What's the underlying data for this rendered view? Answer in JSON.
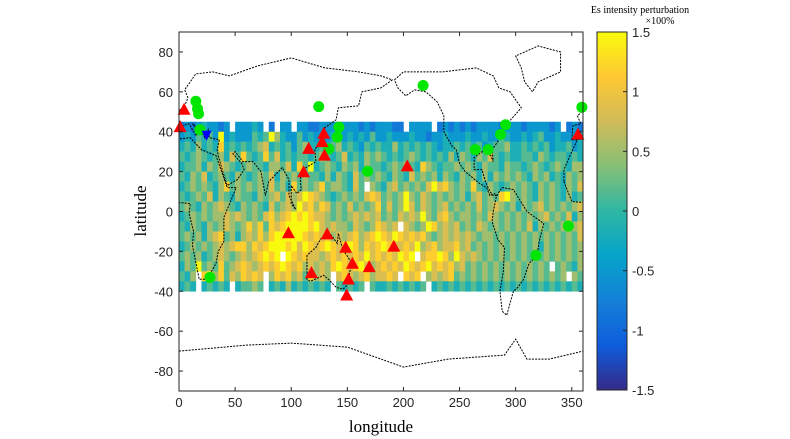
{
  "chart_data": {
    "type": "heatmap",
    "xlabel": "longitude",
    "ylabel": "latitude",
    "xlim": [
      0,
      360
    ],
    "ylim": [
      -90,
      90
    ],
    "xticks": [
      0,
      50,
      100,
      150,
      200,
      250,
      300,
      350
    ],
    "yticks": [
      80,
      60,
      40,
      20,
      0,
      -20,
      -40,
      -60,
      -80
    ],
    "colorbar": {
      "title": "Es intensity perturbation",
      "unit": "×100%",
      "range": [
        -1.5,
        1.5
      ],
      "ticks": [
        "1.5",
        "1",
        "0.5",
        "0",
        "-0.5",
        "-1",
        "-1.5"
      ],
      "colormap": [
        "#352a87",
        "#0f5cdd",
        "#1481d6",
        "#06a4ca",
        "#2eb7a4",
        "#87bf77",
        "#d1bb59",
        "#fec832",
        "#f9fb0e"
      ]
    },
    "grid": {
      "lon_start": 0,
      "lon_step": 5,
      "lat_top": 45,
      "lat_step": 5,
      "encoding": "digit d -> value -1.5 + d/3 ; '.' = no data",
      "rows": [
        "232343323.33343.2.33.332233323332323 3322.3333.23232323333233 32333323.232",
        "343545393433354596433534333453434353343334332334333433433543343453343334",
        "454645484545456745453564454564543545446454545434454545345564454545344534",
        "545654564758545857454554565457454656545456545454646546575454455465455454",
        "455646576545655466574859456546564655456565486545565654655465545654565466",
        "546574565465456574656565546465475656546547565646546564646565654656454656",
        "456565468565656575648565685665475.65467565657978656585465456565465654657",
        "545657465465546567576798765456565787565696576565656467565896565465654645",
        "565465676546565475676978687565756568575697576567565657567656465675656567",
        "456565667676565786789898776565676767565767696578656656576565656567565746",
        "546546567656868587899998976766576568767.76569867675657656565657465656567",
        "565646785646768689999987878676786789879878786567676765665656565656565657",
        "456565676788687899989798789878986878987787967867786756565656565646565656",
        "565645676567678989.98787767878787978787989.78898697676565656565656565656",
        "465956585678767878987867676898789767878798789787867565656565656565.56546",
        "546.89685768787.68786758676.78767867787.878.6767856565656565656565656.65",
        "454.45454.45565.45464545454.54545.5445454545.454545454545454545454545454"
      ]
    },
    "series": [
      {
        "name": "green-circles",
        "marker": "circle",
        "color": "#00e600",
        "points": [
          [
            15,
            55.3
          ],
          [
            16.5,
            51.5
          ],
          [
            17.4,
            49
          ],
          [
            18.6,
            41
          ],
          [
            124.5,
            52.6
          ],
          [
            142.5,
            42.3
          ],
          [
            141,
            37.3
          ],
          [
            133.5,
            31.4
          ],
          [
            217.5,
            63.2
          ],
          [
            168,
            20.2
          ],
          [
            291,
            43.5
          ],
          [
            286.5,
            38.6
          ],
          [
            264,
            31
          ],
          [
            275.4,
            31
          ],
          [
            359,
            52.3
          ],
          [
            347,
            -7.3
          ],
          [
            318,
            -22
          ],
          [
            27.6,
            -33
          ]
        ]
      },
      {
        "name": "red-triangles",
        "marker": "triangle",
        "color": "#ff0000",
        "points": [
          [
            4.5,
            51
          ],
          [
            1,
            42.3
          ],
          [
            129,
            39
          ],
          [
            127.5,
            34.8
          ],
          [
            115.5,
            31.4
          ],
          [
            129.6,
            28
          ],
          [
            111,
            19.7
          ],
          [
            203.4,
            22.6
          ],
          [
            355.5,
            38.6
          ],
          [
            97.5,
            -10.9
          ],
          [
            132,
            -11.5
          ],
          [
            148.5,
            -18.2
          ],
          [
            191.4,
            -17.6
          ],
          [
            154.5,
            -26.2
          ],
          [
            169.5,
            -27.9
          ],
          [
            118,
            -30.9
          ],
          [
            151,
            -34.1
          ],
          [
            149.4,
            -42.1
          ]
        ]
      },
      {
        "name": "blue-triangles",
        "marker": "triangle-down",
        "color": "#0000ff",
        "points": [
          [
            24.6,
            38
          ]
        ]
      }
    ]
  }
}
